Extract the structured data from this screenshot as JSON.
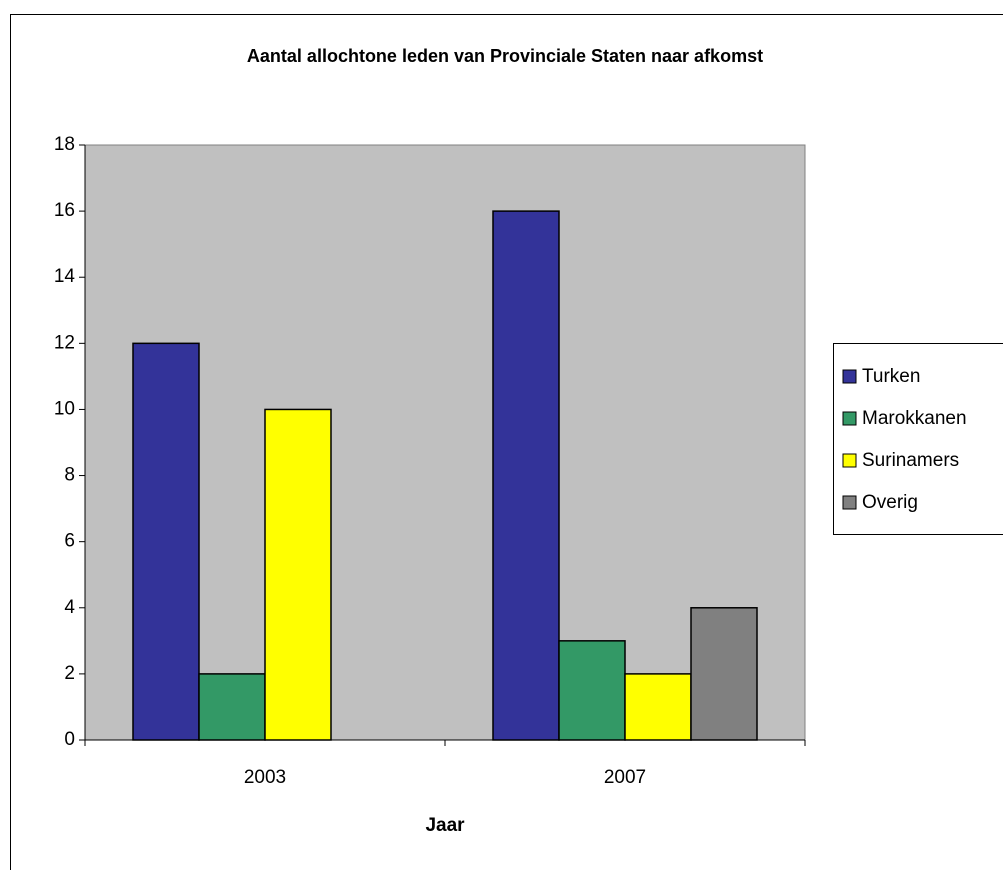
{
  "chart_data": {
    "type": "bar",
    "title": "Aantal allochtone leden van Provinciale Staten naar afkomst",
    "x_label": "Jaar",
    "categories": [
      "2003",
      "2007"
    ],
    "series": [
      {
        "name": "Turken",
        "color": "#333399",
        "values": [
          12,
          16
        ]
      },
      {
        "name": "Marokkanen",
        "color": "#339966",
        "values": [
          2,
          3
        ]
      },
      {
        "name": "Surinamers",
        "color": "#ffff00",
        "values": [
          10,
          2
        ]
      },
      {
        "name": "Overig",
        "color": "#808080",
        "values": [
          null,
          4
        ]
      }
    ],
    "ylim": [
      0,
      18
    ],
    "yticks": [
      0,
      2,
      4,
      6,
      8,
      10,
      12,
      14,
      16,
      18
    ],
    "plot_background": "#c0c0c0",
    "legend": "right"
  }
}
